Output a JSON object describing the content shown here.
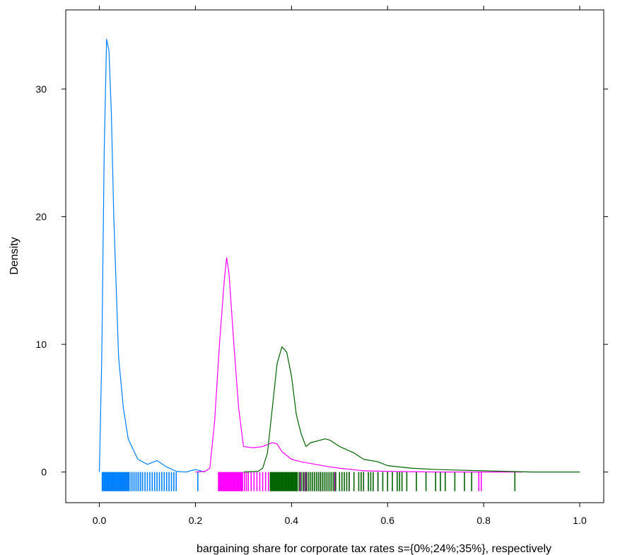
{
  "chart_data": {
    "type": "line",
    "title": "",
    "xlabel": "bargaining share for corporate tax rates s={0%;24%;35%}, respectively",
    "ylabel": "Density",
    "xlim": [
      -0.07,
      1.05
    ],
    "ylim": [
      -2.4,
      36.2
    ],
    "x_ticks": [
      0.0,
      0.2,
      0.4,
      0.6,
      0.8,
      1.0
    ],
    "x_tick_labels": [
      "0.0",
      "0.2",
      "0.4",
      "0.6",
      "0.8",
      "1.0"
    ],
    "y_ticks": [
      0,
      10,
      20,
      30
    ],
    "y_tick_labels": [
      "0",
      "10",
      "20",
      "30"
    ],
    "grid": false,
    "rug_baseline": 0,
    "rug_bottom": -1.5,
    "series": [
      {
        "color": "#0080ff",
        "x": [
          0.0,
          0.005,
          0.01,
          0.015,
          0.02,
          0.025,
          0.03,
          0.04,
          0.05,
          0.06,
          0.08,
          0.1,
          0.12,
          0.14,
          0.16,
          0.18,
          0.2,
          0.22
        ],
        "y": [
          0.0,
          9.0,
          25.0,
          33.9,
          33.0,
          28.0,
          20.0,
          9.0,
          5.0,
          2.6,
          1.0,
          0.6,
          0.9,
          0.4,
          0.05,
          0.0,
          0.2,
          0.0
        ],
        "rug": [
          0.006,
          0.008,
          0.01,
          0.012,
          0.014,
          0.016,
          0.018,
          0.02,
          0.022,
          0.024,
          0.026,
          0.028,
          0.03,
          0.032,
          0.034,
          0.036,
          0.038,
          0.04,
          0.042,
          0.044,
          0.046,
          0.048,
          0.05,
          0.052,
          0.054,
          0.056,
          0.058,
          0.06,
          0.062,
          0.066,
          0.07,
          0.074,
          0.078,
          0.082,
          0.086,
          0.09,
          0.095,
          0.1,
          0.105,
          0.11,
          0.115,
          0.12,
          0.125,
          0.13,
          0.135,
          0.14,
          0.145,
          0.15,
          0.155,
          0.16,
          0.205
        ]
      },
      {
        "color": "#ff00ff",
        "x": [
          0.2,
          0.22,
          0.23,
          0.24,
          0.25,
          0.26,
          0.265,
          0.27,
          0.28,
          0.29,
          0.3,
          0.32,
          0.34,
          0.36,
          0.37,
          0.38,
          0.4,
          0.42,
          0.45,
          0.48,
          0.5,
          0.55,
          0.6,
          0.7,
          0.8,
          0.88
        ],
        "y": [
          0.0,
          0.05,
          0.3,
          4.0,
          10.0,
          15.0,
          16.8,
          15.5,
          10.0,
          5.0,
          2.0,
          1.9,
          2.0,
          2.3,
          2.2,
          1.6,
          1.0,
          0.8,
          0.6,
          0.4,
          0.3,
          0.1,
          0.05,
          0.0,
          0.0,
          0.0
        ],
        "rug": [
          0.248,
          0.25,
          0.252,
          0.254,
          0.256,
          0.258,
          0.26,
          0.262,
          0.264,
          0.266,
          0.268,
          0.27,
          0.272,
          0.274,
          0.276,
          0.278,
          0.28,
          0.282,
          0.284,
          0.286,
          0.288,
          0.29,
          0.292,
          0.294,
          0.296,
          0.298,
          0.302,
          0.306,
          0.31,
          0.316,
          0.322,
          0.328,
          0.334,
          0.34,
          0.346,
          0.352,
          0.41,
          0.418,
          0.425,
          0.43,
          0.46,
          0.49,
          0.52,
          0.55,
          0.58,
          0.6,
          0.79,
          0.795
        ]
      },
      {
        "color": "#006400",
        "x": [
          0.3,
          0.33,
          0.34,
          0.35,
          0.36,
          0.37,
          0.38,
          0.39,
          0.4,
          0.41,
          0.42,
          0.43,
          0.44,
          0.46,
          0.47,
          0.48,
          0.5,
          0.53,
          0.55,
          0.58,
          0.6,
          0.65,
          0.7,
          0.8,
          0.9,
          1.0
        ],
        "y": [
          0.0,
          0.05,
          0.3,
          1.5,
          5.0,
          8.5,
          9.8,
          9.4,
          7.5,
          4.5,
          3.0,
          2.0,
          2.3,
          2.5,
          2.6,
          2.5,
          2.0,
          1.5,
          1.0,
          0.8,
          0.5,
          0.3,
          0.2,
          0.1,
          0.0,
          0.0
        ],
        "rug": [
          0.356,
          0.358,
          0.36,
          0.362,
          0.364,
          0.366,
          0.368,
          0.37,
          0.372,
          0.374,
          0.376,
          0.378,
          0.38,
          0.382,
          0.384,
          0.386,
          0.388,
          0.39,
          0.392,
          0.394,
          0.396,
          0.398,
          0.4,
          0.402,
          0.404,
          0.406,
          0.408,
          0.41,
          0.412,
          0.416,
          0.42,
          0.424,
          0.428,
          0.432,
          0.436,
          0.44,
          0.444,
          0.448,
          0.452,
          0.456,
          0.46,
          0.464,
          0.468,
          0.472,
          0.476,
          0.48,
          0.484,
          0.488,
          0.492,
          0.5,
          0.505,
          0.51,
          0.515,
          0.52,
          0.53,
          0.54,
          0.545,
          0.55,
          0.56,
          0.565,
          0.57,
          0.58,
          0.59,
          0.6,
          0.61,
          0.62,
          0.625,
          0.63,
          0.64,
          0.66,
          0.68,
          0.7,
          0.71,
          0.72,
          0.74,
          0.76,
          0.775,
          0.865
        ]
      }
    ]
  }
}
